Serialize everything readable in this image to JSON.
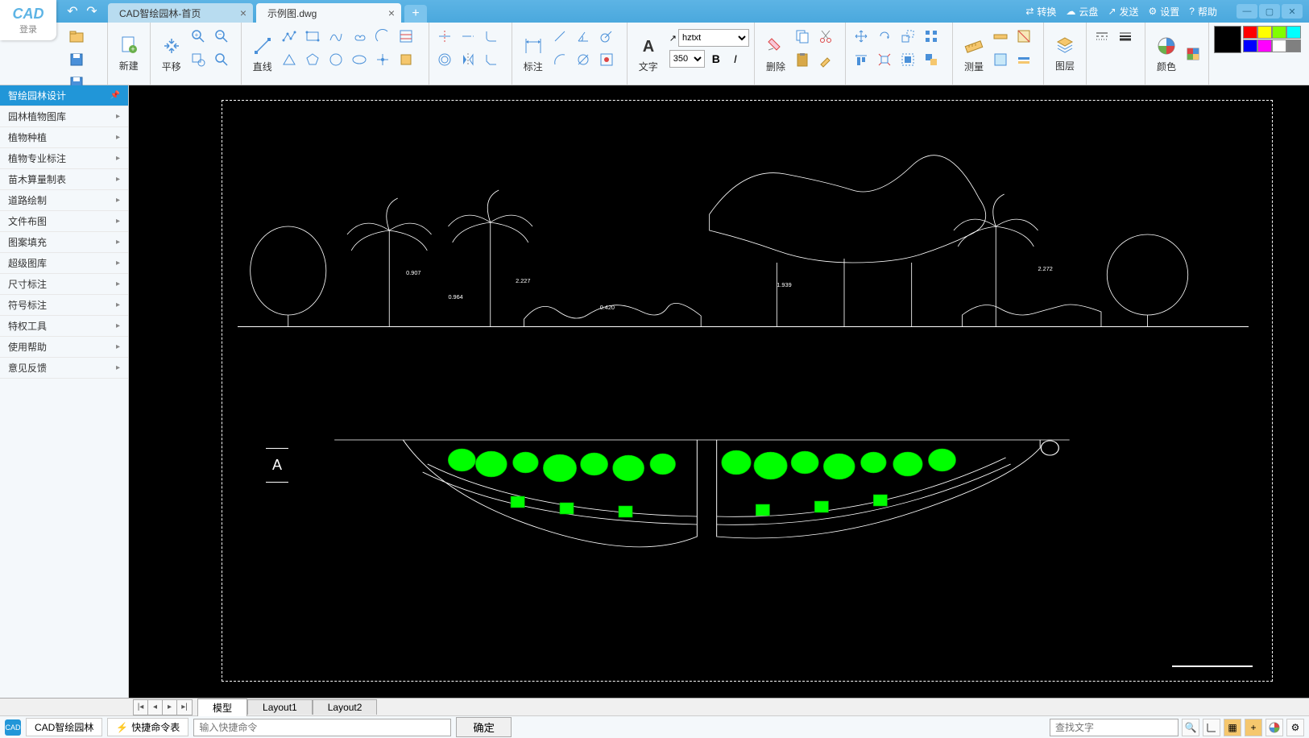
{
  "app": {
    "logo_text": "CAD",
    "login_text": "登录"
  },
  "tabs": [
    {
      "label": "CAD智绘园林-首页",
      "active": false
    },
    {
      "label": "示例图.dwg",
      "active": true
    }
  ],
  "title_actions": [
    {
      "icon": "convert-icon",
      "label": "转换"
    },
    {
      "icon": "cloud-icon",
      "label": "云盘"
    },
    {
      "icon": "send-icon",
      "label": "发送"
    },
    {
      "icon": "settings-icon",
      "label": "设置"
    },
    {
      "icon": "help-icon",
      "label": "帮助"
    }
  ],
  "ribbon": {
    "new_label": "新建",
    "pan_label": "平移",
    "line_label": "直线",
    "annotate_label": "标注",
    "text_label": "文字",
    "font_value": "hztxt",
    "size_value": "350",
    "bold": "B",
    "italic": "I",
    "delete_label": "删除",
    "measure_label": "测量",
    "layers_label": "图层",
    "color_label": "颜色",
    "colors_big": "#000000",
    "colors": [
      "#ff0000",
      "#ffff00",
      "#80ff00",
      "#00ffff",
      "#0000ff",
      "#ff00ff",
      "#ffffff",
      "#808080"
    ]
  },
  "sidebar": [
    {
      "label": "智绘园林设计",
      "active": true,
      "pin": true
    },
    {
      "label": "园林植物图库"
    },
    {
      "label": "植物种植"
    },
    {
      "label": "植物专业标注"
    },
    {
      "label": "苗木算量制表"
    },
    {
      "label": "道路绘制"
    },
    {
      "label": "文件布图"
    },
    {
      "label": "图案填充"
    },
    {
      "label": "超级图库"
    },
    {
      "label": "尺寸标注"
    },
    {
      "label": "符号标注"
    },
    {
      "label": "特权工具"
    },
    {
      "label": "使用帮助"
    },
    {
      "label": "意见反馈"
    }
  ],
  "drawing": {
    "plan_label": "A",
    "dim_labels": [
      "0.907",
      "0.964",
      "2.227",
      "0.420",
      "1.939",
      "2.272"
    ],
    "green": "#00ff00",
    "white": "#ffffff"
  },
  "layout_tabs": [
    "模型",
    "Layout1",
    "Layout2"
  ],
  "statusbar": {
    "app_name": "CAD智绘园林",
    "quick_cmd": "快捷命令表",
    "cmd_placeholder": "输入快捷命令",
    "ok": "确定",
    "search_placeholder": "查找文字"
  }
}
